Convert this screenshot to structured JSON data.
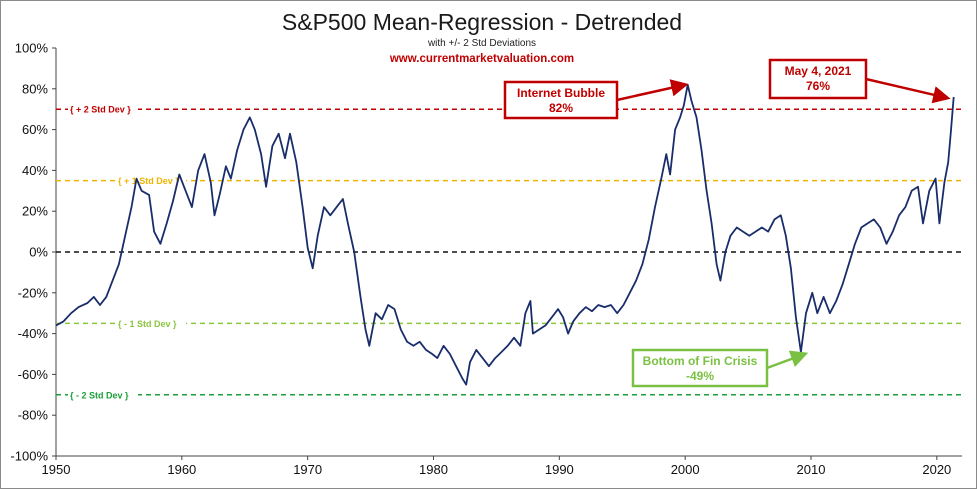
{
  "chart_data": {
    "type": "line",
    "title": "S&P500 Mean-Regression - Detrended",
    "subtitle": "with +/- 2 Std Deviations",
    "source": "www.currentmarketvaluation.com",
    "xlim": [
      1950,
      2022
    ],
    "ylim": [
      -100,
      100
    ],
    "x_ticks": [
      1950,
      1960,
      1970,
      1980,
      1990,
      2000,
      2010,
      2020
    ],
    "y_ticks": [
      -100,
      -80,
      -60,
      -40,
      -20,
      0,
      20,
      40,
      60,
      80,
      100
    ],
    "y_tick_labels": [
      "-100%",
      "-80%",
      "-60%",
      "-40%",
      "-20%",
      "0%",
      "20%",
      "40%",
      "60%",
      "80%",
      "100%"
    ],
    "grid": false,
    "line_color": "#1a2d6b",
    "series": [
      {
        "values": [
          [
            1950.0,
            -36
          ],
          [
            1950.6,
            -34
          ],
          [
            1951.2,
            -30
          ],
          [
            1951.8,
            -27
          ],
          [
            1952.5,
            -25
          ],
          [
            1953.0,
            -22
          ],
          [
            1953.5,
            -26
          ],
          [
            1954.0,
            -22
          ],
          [
            1954.5,
            -14
          ],
          [
            1955.0,
            -6
          ],
          [
            1955.5,
            8
          ],
          [
            1956.0,
            22
          ],
          [
            1956.4,
            36
          ],
          [
            1956.8,
            30
          ],
          [
            1957.4,
            28
          ],
          [
            1957.8,
            10
          ],
          [
            1958.3,
            4
          ],
          [
            1958.8,
            14
          ],
          [
            1959.3,
            25
          ],
          [
            1959.8,
            38
          ],
          [
            1960.3,
            30
          ],
          [
            1960.8,
            22
          ],
          [
            1961.3,
            40
          ],
          [
            1961.8,
            48
          ],
          [
            1962.3,
            34
          ],
          [
            1962.6,
            18
          ],
          [
            1963.0,
            28
          ],
          [
            1963.5,
            42
          ],
          [
            1963.9,
            36
          ],
          [
            1964.4,
            50
          ],
          [
            1964.9,
            60
          ],
          [
            1965.4,
            66
          ],
          [
            1965.8,
            60
          ],
          [
            1966.3,
            48
          ],
          [
            1966.7,
            32
          ],
          [
            1967.2,
            52
          ],
          [
            1967.7,
            58
          ],
          [
            1968.2,
            46
          ],
          [
            1968.6,
            58
          ],
          [
            1969.1,
            44
          ],
          [
            1969.6,
            22
          ],
          [
            1970.0,
            2
          ],
          [
            1970.4,
            -8
          ],
          [
            1970.8,
            8
          ],
          [
            1971.3,
            22
          ],
          [
            1971.8,
            18
          ],
          [
            1972.3,
            22
          ],
          [
            1972.8,
            26
          ],
          [
            1973.2,
            14
          ],
          [
            1973.7,
            0
          ],
          [
            1974.2,
            -22
          ],
          [
            1974.6,
            -38
          ],
          [
            1974.9,
            -46
          ],
          [
            1975.4,
            -30
          ],
          [
            1975.9,
            -33
          ],
          [
            1976.4,
            -26
          ],
          [
            1976.9,
            -28
          ],
          [
            1977.4,
            -38
          ],
          [
            1977.9,
            -44
          ],
          [
            1978.4,
            -46
          ],
          [
            1978.9,
            -44
          ],
          [
            1979.4,
            -48
          ],
          [
            1979.9,
            -50
          ],
          [
            1980.3,
            -52
          ],
          [
            1980.8,
            -46
          ],
          [
            1981.3,
            -50
          ],
          [
            1981.8,
            -56
          ],
          [
            1982.3,
            -62
          ],
          [
            1982.6,
            -65
          ],
          [
            1982.9,
            -54
          ],
          [
            1983.4,
            -48
          ],
          [
            1983.9,
            -52
          ],
          [
            1984.4,
            -56
          ],
          [
            1984.9,
            -52
          ],
          [
            1985.4,
            -49
          ],
          [
            1985.9,
            -46
          ],
          [
            1986.4,
            -42
          ],
          [
            1986.9,
            -46
          ],
          [
            1987.3,
            -30
          ],
          [
            1987.7,
            -24
          ],
          [
            1987.9,
            -40
          ],
          [
            1988.4,
            -38
          ],
          [
            1988.9,
            -36
          ],
          [
            1989.4,
            -32
          ],
          [
            1989.9,
            -28
          ],
          [
            1990.3,
            -32
          ],
          [
            1990.7,
            -40
          ],
          [
            1991.1,
            -34
          ],
          [
            1991.6,
            -30
          ],
          [
            1992.1,
            -27
          ],
          [
            1992.6,
            -29
          ],
          [
            1993.1,
            -26
          ],
          [
            1993.6,
            -27
          ],
          [
            1994.1,
            -26
          ],
          [
            1994.6,
            -30
          ],
          [
            1995.1,
            -26
          ],
          [
            1995.6,
            -20
          ],
          [
            1996.1,
            -14
          ],
          [
            1996.6,
            -6
          ],
          [
            1997.1,
            6
          ],
          [
            1997.6,
            22
          ],
          [
            1998.1,
            36
          ],
          [
            1998.5,
            48
          ],
          [
            1998.8,
            38
          ],
          [
            1999.2,
            60
          ],
          [
            1999.6,
            66
          ],
          [
            1999.9,
            72
          ],
          [
            2000.2,
            82
          ],
          [
            2000.5,
            74
          ],
          [
            2000.9,
            66
          ],
          [
            2001.3,
            50
          ],
          [
            2001.7,
            30
          ],
          [
            2002.1,
            14
          ],
          [
            2002.5,
            -6
          ],
          [
            2002.8,
            -14
          ],
          [
            2003.2,
            0
          ],
          [
            2003.6,
            8
          ],
          [
            2004.1,
            12
          ],
          [
            2004.6,
            10
          ],
          [
            2005.1,
            8
          ],
          [
            2005.6,
            10
          ],
          [
            2006.1,
            12
          ],
          [
            2006.6,
            10
          ],
          [
            2007.1,
            16
          ],
          [
            2007.6,
            18
          ],
          [
            2008.0,
            8
          ],
          [
            2008.4,
            -8
          ],
          [
            2008.8,
            -32
          ],
          [
            2009.2,
            -49
          ],
          [
            2009.6,
            -30
          ],
          [
            2010.1,
            -20
          ],
          [
            2010.5,
            -30
          ],
          [
            2011.0,
            -22
          ],
          [
            2011.5,
            -30
          ],
          [
            2012.0,
            -24
          ],
          [
            2012.5,
            -16
          ],
          [
            2013.0,
            -6
          ],
          [
            2013.5,
            4
          ],
          [
            2014.0,
            12
          ],
          [
            2014.5,
            14
          ],
          [
            2015.0,
            16
          ],
          [
            2015.5,
            12
          ],
          [
            2016.0,
            4
          ],
          [
            2016.5,
            10
          ],
          [
            2017.0,
            18
          ],
          [
            2017.5,
            22
          ],
          [
            2018.0,
            30
          ],
          [
            2018.5,
            32
          ],
          [
            2018.9,
            14
          ],
          [
            2019.4,
            30
          ],
          [
            2019.9,
            36
          ],
          [
            2020.2,
            14
          ],
          [
            2020.6,
            34
          ],
          [
            2020.9,
            44
          ],
          [
            2021.1,
            58
          ],
          [
            2021.34,
            76
          ]
        ]
      }
    ],
    "reference_lines": [
      {
        "value": 70,
        "label": "+ 2 Std Dev",
        "color": "#c00000"
      },
      {
        "value": 35,
        "label": "+ 1 Std Dev",
        "color": "#f0b400"
      },
      {
        "value": 0,
        "label": "",
        "color": "#111111"
      },
      {
        "value": -35,
        "label": "- 1 Std Dev",
        "color": "#8cc63f"
      },
      {
        "value": -70,
        "label": "- 2 Std Dev",
        "color": "#1a9e3a"
      }
    ],
    "annotations": [
      {
        "line1": "Internet Bubble",
        "line2": "82%",
        "color": "#c00000"
      },
      {
        "line1": "May 4, 2021",
        "line2": "76%",
        "color": "#c00000"
      },
      {
        "line1": "Bottom of Fin Crisis",
        "line2": "-49%",
        "color": "#7ac143"
      }
    ]
  }
}
